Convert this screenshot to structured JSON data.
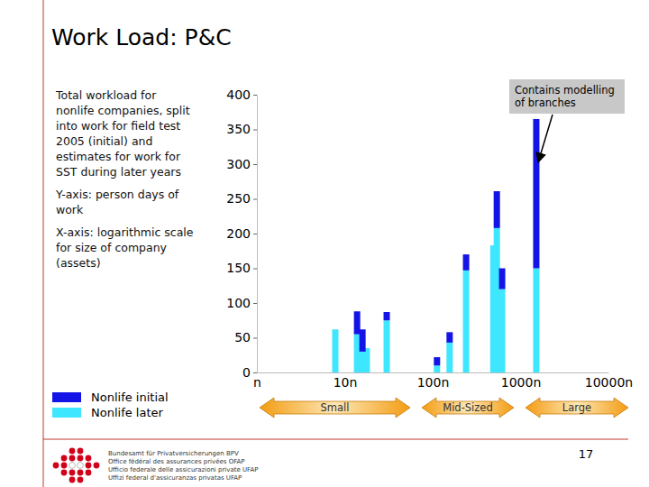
{
  "slide": {
    "title": "Work Load: P&C",
    "description": [
      [
        "Total workload for",
        "nonlife companies, split",
        "into work for field test",
        "2005 (initial) and",
        "estimates for work for",
        "SST during later years"
      ],
      [
        "Y-axis: person days of",
        "work"
      ],
      [
        "X-axis: logarithmic scale",
        "for size of company",
        "(assets)"
      ]
    ],
    "size_ranges": [
      "Small",
      "Mid-Sized",
      "Large"
    ],
    "page_number": "17",
    "footer": [
      "Bundesamt für Privatversicherungen BPV",
      "Office fédéral des assurances privées OFAP",
      "Ufficio federale delle assicurazioni private UFAP",
      "Uffizi federal d'assicuranzas privatas UFAP"
    ]
  },
  "chart_data": {
    "type": "bar",
    "stacked": true,
    "log": "x",
    "grid": false,
    "legend": "bottom-left",
    "x": [
      7.8,
      13.8,
      15.9,
      17.8,
      30,
      112,
      156,
      240,
      490,
      537,
      617,
      1510
    ],
    "series": [
      {
        "name": "Nonlife initial",
        "color": "#1414e6",
        "values": [
          0,
          33,
          32,
          0,
          12,
          12,
          15,
          23,
          0,
          53,
          30,
          215
        ]
      },
      {
        "name": "Nonlife later",
        "color": "#3ee6ff",
        "values": [
          62,
          55,
          30,
          35,
          75,
          10,
          43,
          147,
          183,
          208,
          120,
          150
        ]
      }
    ],
    "xlim": [
      1,
      10000
    ],
    "xticks": [
      {
        "value": 1,
        "label": "n"
      },
      {
        "value": 10,
        "label": "10n"
      },
      {
        "value": 100,
        "label": "100n"
      },
      {
        "value": 1000,
        "label": "1000n"
      },
      {
        "value": 10000,
        "label": "10000n"
      }
    ],
    "ylim": [
      0,
      400
    ],
    "yticks": [
      0,
      50,
      100,
      150,
      200,
      250,
      300,
      350,
      400
    ],
    "annotations": [
      {
        "text": [
          "Contains modelling",
          "of branches"
        ]
      }
    ]
  }
}
